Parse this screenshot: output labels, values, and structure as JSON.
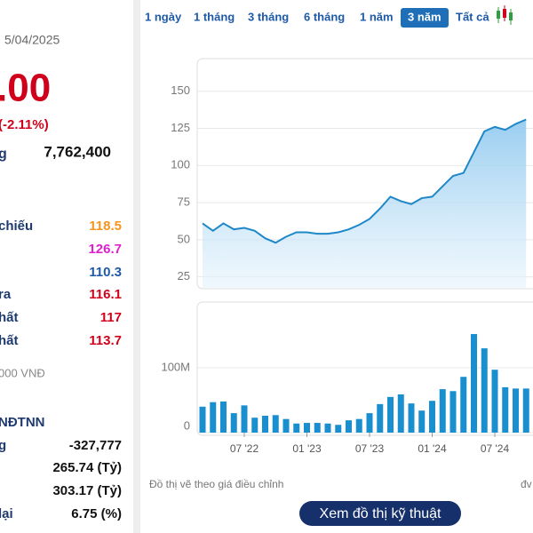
{
  "summary": {
    "date": "5/04/2025",
    "price": ".00",
    "change": "(-2.11%)",
    "volume_label": "g",
    "volume": "7,762,400"
  },
  "stats": [
    {
      "label": "chiếu",
      "value": "118.5",
      "color": "#f7941d"
    },
    {
      "value": "126.7",
      "color": "#e020d0"
    },
    {
      "value": "110.3",
      "color": "#1e5aa8"
    },
    {
      "label": "ra",
      "value": "116.1",
      "color": "#d0021b"
    },
    {
      "label": "hất",
      "value": "117",
      "color": "#d0021b"
    },
    {
      "label": "hất",
      "value": "113.7",
      "color": "#d0021b"
    }
  ],
  "unit_note": "000 VNĐ",
  "foreign": {
    "title": "NĐTNN",
    "rows": [
      {
        "label": "g",
        "value": "-327,777"
      },
      {
        "value": "265.74 (Tỷ)"
      },
      {
        "value": "303.17 (Tỷ)"
      },
      {
        "label": "lại",
        "value": "6.75 (%)"
      }
    ]
  },
  "tabs": [
    "1 ngày",
    "1 tháng",
    "3 tháng",
    "6 tháng",
    "1 năm",
    "3 năm",
    "Tất cả"
  ],
  "active_tab": 5,
  "chart_data": [
    {
      "type": "line",
      "color": "#1e88c8",
      "values": [
        61,
        56,
        61,
        57,
        58,
        56,
        51,
        48,
        52,
        55,
        55,
        54,
        54,
        55,
        57,
        60,
        64,
        71,
        79,
        76,
        74,
        78,
        79,
        86,
        93,
        95,
        109,
        123,
        126,
        124,
        128,
        131
      ],
      "ylim": [
        17,
        172
      ],
      "yticks": [
        25,
        50,
        75,
        100,
        125,
        150
      ],
      "grid": true
    },
    {
      "type": "bar",
      "color": "#1a8fd0",
      "categories": [
        null,
        null,
        null,
        null,
        "07 '22",
        null,
        null,
        null,
        null,
        null,
        "01 '23",
        null,
        null,
        null,
        null,
        null,
        "07 '23",
        null,
        null,
        null,
        null,
        null,
        "01 '24",
        null,
        null,
        null,
        null,
        null,
        "07 '24",
        null,
        null,
        null
      ],
      "values": [
        40000000,
        47000000,
        48000000,
        30000000,
        42000000,
        23000000,
        26000000,
        27000000,
        21000000,
        14000000,
        15000000,
        15000000,
        14000000,
        12000000,
        19000000,
        21000000,
        30000000,
        44000000,
        55000000,
        59000000,
        45000000,
        34000000,
        49000000,
        67000000,
        64000000,
        86000000,
        152000000,
        130000000,
        97000000,
        70000000,
        68000000,
        68000000
      ],
      "ylim": [
        0,
        200000000
      ],
      "yticks": [
        0,
        {
          "value": 100000000,
          "label": "100M"
        }
      ],
      "grid": true
    }
  ],
  "footnote": "Đồ thị vẽ theo giá điều chỉnh",
  "footnote_right": "đv",
  "button": "Xem đồ thị kỹ thuật"
}
